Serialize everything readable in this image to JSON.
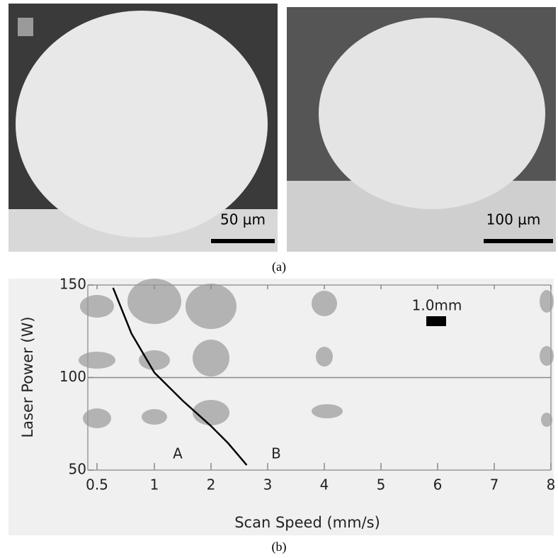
{
  "figure_a": {
    "scale_bars": [
      "50 µm",
      "100 µm"
    ],
    "caption": "(a)"
  },
  "chart_data": {
    "type": "line",
    "caption": "(b)",
    "x_label": "Scan Speed (mm/s)",
    "y_label": "Laser Power (W)",
    "xticks": [
      0.5,
      1,
      2,
      3,
      4,
      5,
      6,
      7,
      8
    ],
    "ylim": [
      50,
      150
    ],
    "yticks": [
      50,
      100,
      150
    ],
    "reference_line": 100,
    "annotations": [
      "A",
      "B",
      "1.0mm"
    ],
    "series": [
      {
        "color": "#000000",
        "x": [
          0.64,
          0.8,
          1,
          1.5,
          2,
          2.3,
          2.63
        ],
        "values": [
          148.5,
          123.8,
          102.7,
          87.5,
          73.8,
          64.6,
          52.7
        ]
      }
    ]
  }
}
